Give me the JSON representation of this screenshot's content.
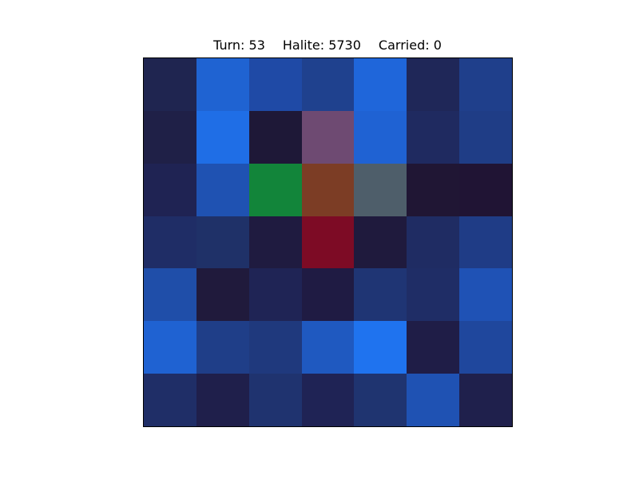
{
  "status": {
    "turn": "Turn: 53",
    "halite": "Halite: 5730",
    "carried": "Carried: 0"
  },
  "board": {
    "rows": 7,
    "cols": 7,
    "cells": [
      [
        "#1f2550",
        "#1f63d2",
        "#1f4aa6",
        "#1f418e",
        "#1f66da",
        "#1f2758",
        "#1f3f8b"
      ],
      [
        "#1f2047",
        "#1f6ee6",
        "#1e1837",
        "#6e4a72",
        "#1f62d3",
        "#1f2a60",
        "#1f3d86"
      ],
      [
        "#1f2353",
        "#1f52b2",
        "#12853a",
        "#7c3d25",
        "#4e5e6a",
        "#201634",
        "#201434"
      ],
      [
        "#1f2d66",
        "#1f3168",
        "#1f1b40",
        "#7d0b25",
        "#1f1a3d",
        "#1f2c63",
        "#1f3c86"
      ],
      [
        "#1f4ea9",
        "#201a3c",
        "#1f2455",
        "#1f1b43",
        "#1f3574",
        "#1f2d66",
        "#1f52b5"
      ],
      [
        "#1f62d2",
        "#1f3e88",
        "#1f397d",
        "#1f59c0",
        "#1f73ef",
        "#1f1d47",
        "#1f479d"
      ],
      [
        "#1f2e67",
        "#1f1f4b",
        "#1f336f",
        "#1f2355",
        "#1f3470",
        "#1f52b3",
        "#1f204c"
      ]
    ]
  }
}
